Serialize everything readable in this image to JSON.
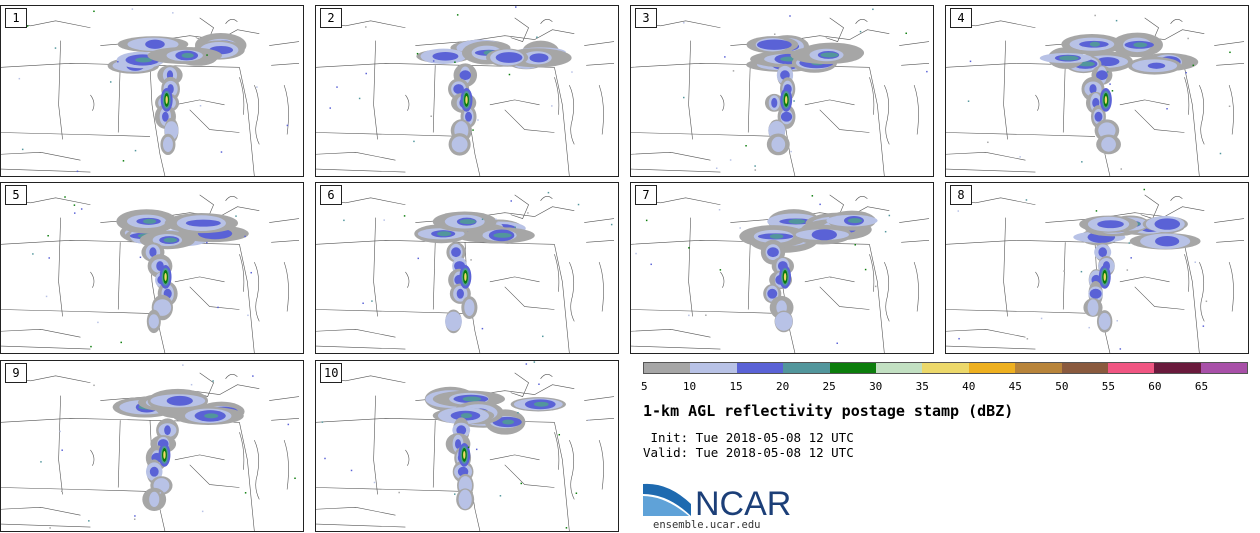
{
  "panels": [
    {
      "label": "1"
    },
    {
      "label": "2"
    },
    {
      "label": "3"
    },
    {
      "label": "4"
    },
    {
      "label": "5"
    },
    {
      "label": "6"
    },
    {
      "label": "7"
    },
    {
      "label": "8"
    },
    {
      "label": "9"
    },
    {
      "label": "10"
    }
  ],
  "colorbar": {
    "colors": [
      "#a6a6a6",
      "#b8c2e6",
      "#5a62d6",
      "#52969c",
      "#0c7d0c",
      "#c2e0c2",
      "#ecd86a",
      "#eeb020",
      "#b8843a",
      "#8a5a3e",
      "#f05682",
      "#6a1a3c",
      "#a850a8"
    ],
    "ticks": [
      "5",
      "10",
      "15",
      "20",
      "25",
      "30",
      "35",
      "40",
      "45",
      "50",
      "55",
      "60",
      "65"
    ]
  },
  "title": "1-km AGL reflectivity postage stamp (dBZ)",
  "init_line": " Init: Tue 2018-05-08 12 UTC",
  "valid_line": "Valid: Tue 2018-05-08 12 UTC",
  "logo": {
    "text": "NCAR",
    "url": "ensemble.ucar.edu",
    "icon": "ncar-swoosh-icon"
  }
}
